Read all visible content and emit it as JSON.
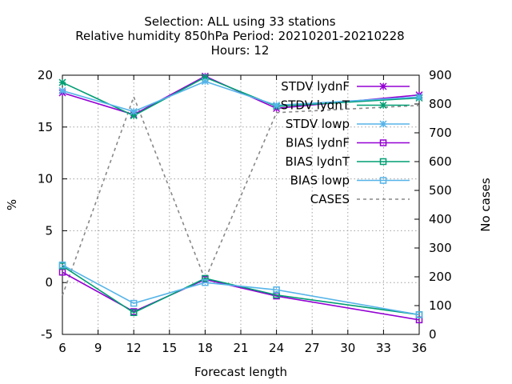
{
  "chart_data": {
    "type": "line",
    "title_lines": [
      "Selection: ALL using    33 stations",
      "Relative humidity 850hPa   Period: 20210201-20210228",
      "Hours:  12"
    ],
    "xlabel": "Forecast length",
    "ylabel": "%",
    "y2label": "No cases",
    "xlim": [
      6,
      36
    ],
    "ylim": [
      -5,
      20
    ],
    "y2lim": [
      0,
      900
    ],
    "xticks": [
      "6",
      "9",
      "12",
      "15",
      "18",
      "21",
      "24",
      "27",
      "30",
      "33",
      "36"
    ],
    "yticks": [
      "-5",
      "0",
      "5",
      "10",
      "15",
      "20"
    ],
    "y2ticks": [
      "0",
      "100",
      "200",
      "300",
      "400",
      "500",
      "600",
      "700",
      "800",
      "900"
    ],
    "grid": true,
    "legend_position": "top-right",
    "series": [
      {
        "name": "STDV lydnF",
        "axis": "y",
        "color": "#9400d3",
        "marker": "star",
        "dash": false,
        "x": [
          6,
          12,
          18,
          24,
          36
        ],
        "y": [
          18.3,
          16.2,
          19.9,
          16.8,
          18.1
        ]
      },
      {
        "name": "STDV lydnT",
        "axis": "y",
        "color": "#009e73",
        "marker": "star",
        "dash": false,
        "x": [
          6,
          12,
          18,
          24,
          36
        ],
        "y": [
          19.3,
          16.1,
          19.8,
          17.0,
          17.8
        ]
      },
      {
        "name": "STDV lowp",
        "axis": "y",
        "color": "#56b4e9",
        "marker": "star",
        "dash": false,
        "x": [
          6,
          12,
          18,
          24,
          36
        ],
        "y": [
          18.5,
          16.5,
          19.4,
          17.1,
          17.9
        ]
      },
      {
        "name": "BIAS lydnF",
        "axis": "y",
        "color": "#9400d3",
        "marker": "square",
        "dash": false,
        "x": [
          6,
          12,
          18,
          24,
          36
        ],
        "y": [
          1.0,
          -2.8,
          0.3,
          -1.3,
          -3.6
        ]
      },
      {
        "name": "BIAS lydnT",
        "axis": "y",
        "color": "#009e73",
        "marker": "square",
        "dash": false,
        "x": [
          6,
          12,
          18,
          24,
          36
        ],
        "y": [
          1.6,
          -2.9,
          0.4,
          -1.2,
          -3.1
        ]
      },
      {
        "name": "BIAS lowp",
        "axis": "y",
        "color": "#56b4e9",
        "marker": "square",
        "dash": false,
        "x": [
          6,
          12,
          18,
          24,
          36
        ],
        "y": [
          1.7,
          -2.0,
          0.0,
          -0.7,
          -3.1
        ]
      },
      {
        "name": "CASES",
        "axis": "y2",
        "color": "#888888",
        "marker": "none",
        "dash": true,
        "x": [
          6,
          12,
          18,
          24,
          36
        ],
        "y": [
          135,
          825,
          190,
          770,
          795
        ]
      }
    ]
  }
}
